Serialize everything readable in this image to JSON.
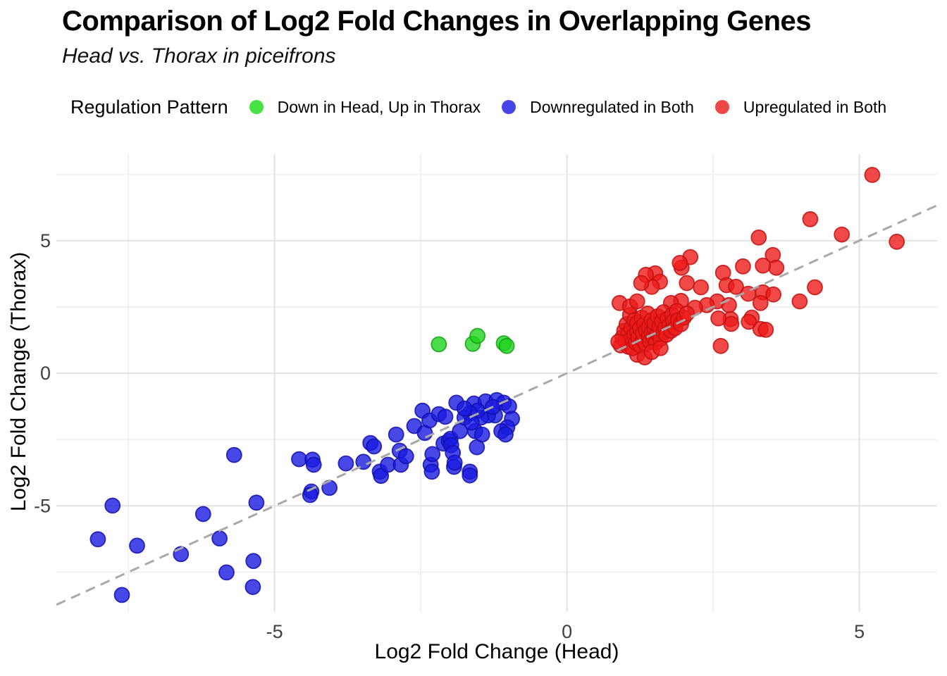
{
  "header": {
    "title": "Comparison of Log2 Fold Changes in Overlapping Genes",
    "subtitle": "Head vs. Thorax in piceifrons"
  },
  "legend": {
    "title": "Regulation Pattern",
    "items": [
      {
        "label": "Down in Head, Up in Thorax",
        "swatch": "#45e145"
      },
      {
        "label": "Downregulated in Both",
        "swatch": "#4646e8"
      },
      {
        "label": "Upregulated in Both",
        "swatch": "#f04747"
      }
    ]
  },
  "axes": {
    "x": {
      "label": "Log2 Fold Change (Head)",
      "ticks": [
        -5,
        0,
        5
      ],
      "tick_labels": [
        "-5",
        "0",
        "5"
      ],
      "minor": [
        -7.5,
        -2.5,
        2.5
      ]
    },
    "y": {
      "label": "Log2 Fold Change (Thorax)",
      "ticks": [
        5,
        0,
        -5
      ],
      "tick_labels": [
        "5",
        "0",
        "-5"
      ],
      "minor": [
        7.5,
        2.5,
        -2.5,
        -7.5
      ]
    },
    "grid": {
      "major": "#e2e2e2",
      "minor": "#efefef"
    }
  },
  "reference_line": {
    "slope": 1,
    "intercept": 0,
    "color": "#a9a9a9",
    "style": "dashed"
  },
  "chart_data": {
    "type": "scatter",
    "title": "Comparison of Log2 Fold Changes in Overlapping Genes",
    "subtitle": "Head vs. Thorax in piceifrons",
    "xlabel": "Log2 Fold Change (Head)",
    "ylabel": "Log2 Fold Change (Thorax)",
    "legend_title": "Regulation Pattern",
    "xlim": [
      -8.73,
      6.33
    ],
    "ylim": [
      -9.0,
      8.26
    ],
    "grid": true,
    "series": [
      {
        "name": "Down in Head, Up in Thorax",
        "fill": "#1ed31e",
        "stroke": "#14a014",
        "points": [
          [
            -2.19,
            1.09
          ],
          [
            -1.61,
            1.11
          ],
          [
            -1.53,
            1.41
          ],
          [
            -1.08,
            1.13
          ],
          [
            -1.03,
            1.03
          ]
        ]
      },
      {
        "name": "Downregulated in Both",
        "fill": "#1a1ae0",
        "stroke": "#1111ad",
        "points": [
          [
            -8.02,
            -6.26
          ],
          [
            -7.77,
            -4.99
          ],
          [
            -7.61,
            -8.36
          ],
          [
            -7.35,
            -6.5
          ],
          [
            -6.6,
            -6.82
          ],
          [
            -6.22,
            -5.31
          ],
          [
            -5.94,
            -6.23
          ],
          [
            -5.82,
            -7.51
          ],
          [
            -5.69,
            -3.08
          ],
          [
            -5.36,
            -7.08
          ],
          [
            -5.31,
            -4.88
          ],
          [
            -5.37,
            -8.06
          ],
          [
            -4.58,
            -3.24
          ],
          [
            -4.35,
            -3.26
          ],
          [
            -4.33,
            -3.45
          ],
          [
            -4.37,
            -4.46
          ],
          [
            -4.39,
            -4.59
          ],
          [
            -4.06,
            -4.32
          ],
          [
            -3.78,
            -3.4
          ],
          [
            -3.48,
            -3.34
          ],
          [
            -3.36,
            -2.63
          ],
          [
            -3.3,
            -2.76
          ],
          [
            -3.2,
            -3.71
          ],
          [
            -3.18,
            -3.87
          ],
          [
            -3.06,
            -3.45
          ],
          [
            -2.92,
            -2.31
          ],
          [
            -2.86,
            -2.92
          ],
          [
            -2.84,
            -3.45
          ],
          [
            -2.75,
            -3.13
          ],
          [
            -2.61,
            -1.99
          ],
          [
            -2.47,
            -1.41
          ],
          [
            -2.43,
            -2.25
          ],
          [
            -2.35,
            -1.78
          ],
          [
            -2.33,
            -3.45
          ],
          [
            -2.31,
            -3.71
          ],
          [
            -2.3,
            -3.05
          ],
          [
            -2.19,
            -1.54
          ],
          [
            -2.11,
            -2.65
          ],
          [
            -2.08,
            -1.64
          ],
          [
            -2.02,
            -2.55
          ],
          [
            -1.99,
            -2.47
          ],
          [
            -1.98,
            -2.71
          ],
          [
            -1.95,
            -3.0
          ],
          [
            -1.93,
            -3.53
          ],
          [
            -1.92,
            -3.37
          ],
          [
            -1.83,
            -2.18
          ],
          [
            -1.66,
            -3.71
          ],
          [
            -1.66,
            -3.85
          ],
          [
            -1.54,
            -2.79
          ],
          [
            -1.89,
            -1.11
          ],
          [
            -1.59,
            -1.14
          ],
          [
            -1.39,
            -1.06
          ],
          [
            -1.2,
            -1.01
          ],
          [
            -1.08,
            -1.11
          ],
          [
            -0.99,
            -1.25
          ],
          [
            -0.94,
            -1.72
          ],
          [
            -1.02,
            -2.04
          ],
          [
            -1.12,
            -2.18
          ],
          [
            -1.23,
            -1.59
          ],
          [
            -1.35,
            -1.59
          ],
          [
            -1.47,
            -1.67
          ],
          [
            -1.53,
            -1.41
          ],
          [
            -1.66,
            -1.51
          ],
          [
            -1.75,
            -1.67
          ],
          [
            -1.57,
            -2.18
          ],
          [
            -1.45,
            -2.31
          ],
          [
            -1.05,
            -2.31
          ],
          [
            -1.75,
            -1.33
          ],
          [
            -1.27,
            -1.27
          ],
          [
            -1.63,
            -1.86
          ]
        ]
      },
      {
        "name": "Upregulated in Both",
        "fill": "#ee1a1a",
        "stroke": "#c01212",
        "points": [
          [
            5.22,
            7.48
          ],
          [
            4.16,
            5.81
          ],
          [
            4.7,
            5.23
          ],
          [
            5.64,
            4.96
          ],
          [
            3.28,
            5.12
          ],
          [
            3.52,
            4.46
          ],
          [
            3.58,
            3.98
          ],
          [
            3.01,
            4.03
          ],
          [
            2.11,
            4.38
          ],
          [
            1.96,
            3.98
          ],
          [
            2.05,
            3.4
          ],
          [
            3.35,
            4.06
          ],
          [
            3.35,
            3.05
          ],
          [
            3.53,
            2.97
          ],
          [
            4.24,
            3.24
          ],
          [
            3.98,
            2.71
          ],
          [
            1.51,
            3.77
          ],
          [
            1.59,
            3.45
          ],
          [
            1.45,
            3.26
          ],
          [
            2.67,
            3.79
          ],
          [
            2.73,
            3.32
          ],
          [
            2.89,
            3.26
          ],
          [
            3.1,
            3.0
          ],
          [
            2.57,
            2.71
          ],
          [
            2.77,
            2.57
          ],
          [
            2.8,
            2.04
          ],
          [
            2.29,
            3.24
          ],
          [
            2.39,
            2.57
          ],
          [
            2.19,
            2.47
          ],
          [
            1.95,
            2.73
          ],
          [
            1.78,
            2.65
          ],
          [
            3.16,
            2.1
          ],
          [
            3.11,
            1.94
          ],
          [
            3.31,
            1.67
          ],
          [
            2.81,
            1.86
          ],
          [
            2.63,
            1.03
          ],
          [
            1.93,
            4.16
          ],
          [
            1.35,
            3.71
          ],
          [
            1.27,
            3.4
          ],
          [
            3.4,
            1.64
          ],
          [
            3.31,
            2.65
          ],
          [
            2.59,
            2.07
          ],
          [
            1.2,
            0.7
          ],
          [
            0.92,
            1.05
          ],
          [
            0.95,
            1.35
          ],
          [
            0.98,
            1.6
          ],
          [
            1.0,
            1.2
          ],
          [
            1.02,
            1.85
          ],
          [
            1.05,
            1.0
          ],
          [
            1.05,
            1.5
          ],
          [
            1.08,
            2.2
          ],
          [
            1.1,
            1.3
          ],
          [
            1.1,
            1.7
          ],
          [
            1.12,
            0.95
          ],
          [
            1.15,
            1.45
          ],
          [
            1.15,
            2.0
          ],
          [
            1.18,
            1.15
          ],
          [
            1.2,
            1.55
          ],
          [
            1.2,
            1.9
          ],
          [
            1.22,
            1.35
          ],
          [
            1.25,
            1.05
          ],
          [
            1.25,
            1.7
          ],
          [
            1.28,
            2.1
          ],
          [
            1.3,
            1.25
          ],
          [
            1.3,
            1.5
          ],
          [
            1.32,
            1.85
          ],
          [
            1.35,
            1.1
          ],
          [
            1.35,
            1.6
          ],
          [
            1.38,
            2.25
          ],
          [
            1.4,
            1.4
          ],
          [
            1.4,
            1.75
          ],
          [
            1.42,
            1.2
          ],
          [
            1.45,
            1.55
          ],
          [
            1.45,
            2.0
          ],
          [
            1.48,
            1.35
          ],
          [
            1.5,
            1.65
          ],
          [
            1.5,
            1.9
          ],
          [
            1.52,
            1.15
          ],
          [
            1.55,
            1.5
          ],
          [
            1.55,
            2.15
          ],
          [
            1.58,
            1.75
          ],
          [
            1.6,
            1.3
          ],
          [
            1.62,
            1.95
          ],
          [
            1.65,
            1.55
          ],
          [
            1.65,
            2.3
          ],
          [
            1.68,
            1.7
          ],
          [
            1.7,
            1.45
          ],
          [
            1.72,
            2.05
          ],
          [
            1.75,
            1.8
          ],
          [
            1.78,
            1.6
          ],
          [
            1.8,
            2.2
          ],
          [
            1.82,
            1.95
          ],
          [
            1.85,
            1.7
          ],
          [
            1.88,
            2.35
          ],
          [
            1.9,
            2.0
          ],
          [
            1.95,
            1.85
          ],
          [
            2.0,
            2.1
          ],
          [
            2.05,
            2.25
          ],
          [
            0.88,
            1.19
          ],
          [
            1.33,
            0.6
          ],
          [
            1.45,
            0.8
          ],
          [
            1.6,
            0.95
          ],
          [
            0.9,
            2.65
          ],
          [
            1.08,
            2.52
          ],
          [
            1.2,
            2.71
          ]
        ]
      }
    ]
  }
}
